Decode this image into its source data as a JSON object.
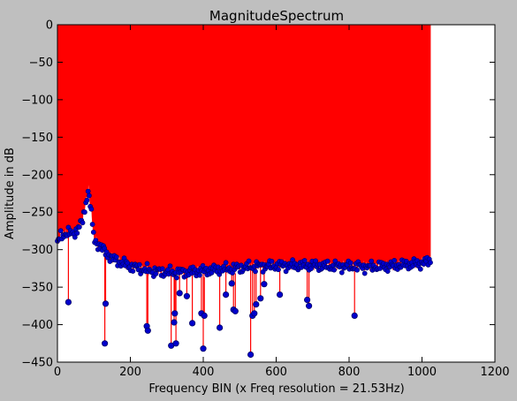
{
  "chart_data": {
    "type": "stem",
    "title": "MagnitudeSpectrum",
    "xlabel": "Frequency BIN (x Freq resolution = 21.53Hz)",
    "ylabel": "Amplitude in dB",
    "xlim": [
      0,
      1200
    ],
    "ylim": [
      -450,
      0
    ],
    "xticks": [
      0,
      200,
      400,
      600,
      800,
      1000,
      1200
    ],
    "yticks": [
      0,
      -50,
      -100,
      -150,
      -200,
      -250,
      -300,
      -350,
      -400,
      -450
    ],
    "xtick_labels": [
      "0",
      "200",
      "400",
      "600",
      "800",
      "1000",
      "1200"
    ],
    "ytick_labels": [
      "0",
      "−50",
      "−100",
      "−150",
      "−200",
      "−250",
      "−300",
      "−350",
      "−400",
      "−450"
    ],
    "baseline": 0,
    "grid": false,
    "stem_color": "#ff0000",
    "marker_color": "#0000cc",
    "marker_edge_color": "#000066",
    "plot_background": "#ffffff",
    "figure_background": "#bfbfbf",
    "envelope": [
      [
        0,
        -292
      ],
      [
        10,
        -280
      ],
      [
        20,
        -279
      ],
      [
        40,
        -278
      ],
      [
        50,
        -276
      ],
      [
        60,
        -270
      ],
      [
        70,
        -260
      ],
      [
        75,
        -245
      ],
      [
        80,
        -230
      ],
      [
        85,
        -222
      ],
      [
        90,
        -240
      ],
      [
        95,
        -262
      ],
      [
        100,
        -285
      ],
      [
        110,
        -292
      ],
      [
        120,
        -298
      ],
      [
        130,
        -302
      ],
      [
        150,
        -312
      ],
      [
        180,
        -318
      ],
      [
        200,
        -322
      ],
      [
        250,
        -328
      ],
      [
        300,
        -330
      ],
      [
        350,
        -330
      ],
      [
        400,
        -328
      ],
      [
        450,
        -326
      ],
      [
        500,
        -324
      ],
      [
        550,
        -322
      ],
      [
        600,
        -321
      ],
      [
        650,
        -321
      ],
      [
        700,
        -321
      ],
      [
        750,
        -322
      ],
      [
        800,
        -322
      ],
      [
        850,
        -323
      ],
      [
        900,
        -322
      ],
      [
        950,
        -320
      ],
      [
        1000,
        -318
      ],
      [
        1024,
        -315
      ]
    ],
    "dips": [
      [
        30,
        -370
      ],
      [
        130,
        -425
      ],
      [
        132,
        -372
      ],
      [
        245,
        -402
      ],
      [
        248,
        -408
      ],
      [
        312,
        -428
      ],
      [
        320,
        -397
      ],
      [
        322,
        -385
      ],
      [
        325,
        -425
      ],
      [
        335,
        -358
      ],
      [
        355,
        -362
      ],
      [
        370,
        -398
      ],
      [
        395,
        -385
      ],
      [
        400,
        -432
      ],
      [
        403,
        -388
      ],
      [
        445,
        -404
      ],
      [
        462,
        -360
      ],
      [
        478,
        -345
      ],
      [
        483,
        -380
      ],
      [
        488,
        -382
      ],
      [
        530,
        -440
      ],
      [
        535,
        -388
      ],
      [
        540,
        -385
      ],
      [
        545,
        -373
      ],
      [
        557,
        -365
      ],
      [
        567,
        -346
      ],
      [
        610,
        -360
      ],
      [
        685,
        -367
      ],
      [
        690,
        -375
      ],
      [
        815,
        -388
      ]
    ]
  }
}
